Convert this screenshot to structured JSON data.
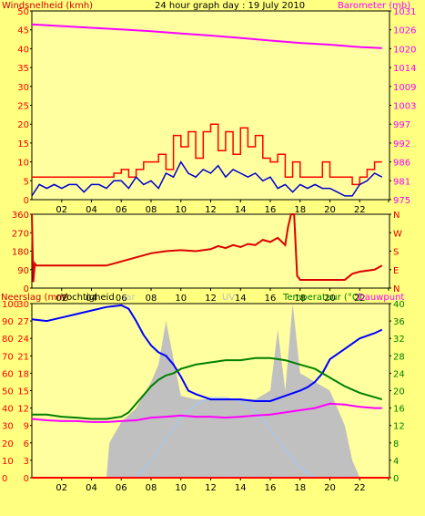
{
  "header": {
    "left_title": "Windsnelheid (kmh)",
    "center_title": "24 hour graph day : 19 July 2010",
    "right_title": "Barometer (mb)"
  },
  "bottom_labels": {
    "rain": "Neerslag (mm)",
    "humidity": "Vochtigheid",
    "solar": "Solar",
    "uv": "UV",
    "temperature": "Temperatuur (°C)",
    "dewpoint": "Dauwpunt"
  },
  "x_ticks": [
    "02",
    "04",
    "06",
    "08",
    "10",
    "12",
    "14",
    "16",
    "18",
    "20",
    "22"
  ],
  "colors": {
    "background": "#ffff80",
    "plot_bg": "#ffffa0",
    "wind_gust": "#ff0000",
    "wind_avg": "#0000cc",
    "barometer": "#ff00ff",
    "direction": "#dd0000",
    "humidity": "#0000ff",
    "temperature": "#008000",
    "dewpoint": "#ff00ff",
    "solar": "#c0c0c0",
    "uv": "#9cc8ff"
  },
  "chart_data": [
    {
      "type": "line",
      "title": "24 hour graph day : 19 July 2010",
      "x_label": "",
      "y_label_left": "Windsnelheid (kmh)",
      "y_label_right": "Barometer (mb)",
      "x_range_hours": [
        0,
        24
      ],
      "y_left_ticks": [
        "50",
        "45",
        "40",
        "35",
        "30",
        "25",
        "20",
        "15",
        "10",
        "5",
        "0"
      ],
      "y_left_range": [
        0,
        50
      ],
      "y_right_ticks": [
        "1031",
        "1026",
        "1020",
        "1014",
        "1009",
        "1003",
        "997",
        "992",
        "986",
        "981",
        "975"
      ],
      "y_right_range": [
        975,
        1031
      ],
      "series": [
        {
          "name": "gust",
          "axis": "left",
          "x": [
            0,
            1,
            2,
            3,
            4,
            5,
            5.5,
            6,
            6.5,
            7,
            7.5,
            8,
            8.5,
            9,
            9.5,
            10,
            10.5,
            11,
            11.5,
            12,
            12.5,
            13,
            13.5,
            14,
            14.5,
            15,
            15.5,
            16,
            16.5,
            17,
            17.5,
            18,
            18.5,
            19,
            19.5,
            20,
            20.5,
            21,
            21.5,
            22,
            22.5,
            23,
            23.5
          ],
          "values": [
            6,
            6,
            6,
            6,
            6,
            6,
            7,
            8,
            6,
            8,
            10,
            10,
            12,
            8,
            17,
            14,
            18,
            11,
            18,
            20,
            13,
            18,
            12,
            19,
            14,
            17,
            11,
            10,
            12,
            6,
            10,
            6,
            6,
            6,
            10,
            6,
            6,
            6,
            4,
            6,
            8,
            10,
            10
          ]
        },
        {
          "name": "average",
          "axis": "left",
          "x": [
            0,
            0.5,
            1,
            1.5,
            2,
            2.5,
            3,
            3.5,
            4,
            4.5,
            5,
            5.5,
            6,
            6.5,
            7,
            7.5,
            8,
            8.5,
            9,
            9.5,
            10,
            10.5,
            11,
            11.5,
            12,
            12.5,
            13,
            13.5,
            14,
            14.5,
            15,
            15.5,
            16,
            16.5,
            17,
            17.5,
            18,
            18.5,
            19,
            19.5,
            20,
            20.5,
            21,
            21.5,
            22,
            22.5,
            23,
            23.5
          ],
          "values": [
            1,
            4,
            3,
            4,
            3,
            4,
            4,
            2,
            4,
            4,
            3,
            5,
            5,
            3,
            6,
            4,
            5,
            3,
            7,
            6,
            10,
            7,
            6,
            8,
            7,
            9,
            6,
            8,
            7,
            6,
            7,
            5,
            6,
            3,
            4,
            2,
            4,
            3,
            4,
            3,
            3,
            2,
            1,
            1,
            4,
            5,
            7,
            6
          ]
        },
        {
          "name": "barometer",
          "axis": "right",
          "x": [
            0,
            2,
            4,
            6,
            8,
            10,
            12,
            14,
            16,
            18,
            20,
            22,
            23.5
          ],
          "values": [
            1027,
            1026.5,
            1026,
            1025.5,
            1025,
            1024.3,
            1023.7,
            1023,
            1022.2,
            1021.5,
            1021,
            1020.3,
            1020
          ]
        }
      ]
    },
    {
      "type": "line",
      "title": "",
      "y_label_left": "",
      "y_ticks": [
        "360",
        "270",
        "180",
        "90",
        "0"
      ],
      "y_range": [
        0,
        360
      ],
      "right_labels": [
        "N",
        "W",
        "S",
        "E",
        "N"
      ],
      "x_range_hours": [
        0,
        24
      ],
      "series": [
        {
          "name": "direction",
          "x": [
            0,
            0.1,
            0.2,
            0.3,
            2,
            4,
            5,
            6,
            7,
            8,
            9,
            10,
            11,
            12,
            12.5,
            13,
            13.5,
            14,
            14.5,
            15,
            15.5,
            16,
            16.5,
            17,
            17.2,
            17.4,
            17.6,
            17.8,
            18,
            19,
            20,
            21,
            21.5,
            22,
            23,
            23.5
          ],
          "values": [
            360,
            30,
            120,
            110,
            110,
            110,
            110,
            130,
            150,
            170,
            180,
            185,
            180,
            190,
            205,
            195,
            210,
            200,
            215,
            210,
            235,
            225,
            245,
            210,
            300,
            360,
            360,
            60,
            40,
            40,
            40,
            40,
            70,
            80,
            90,
            110
          ]
        }
      ]
    },
    {
      "type": "line",
      "title": "",
      "y_label_left": "Neerslag (mm)",
      "y_label_right": "Temperatuur (°C)",
      "x_range_hours": [
        0,
        24
      ],
      "rain_ticks": [
        "30",
        "27",
        "24",
        "21",
        "18",
        "15",
        "12",
        "9",
        "6",
        "3",
        "0"
      ],
      "rain_range": [
        0,
        30
      ],
      "humidity_ticks": [
        "100",
        "90",
        "80",
        "70",
        "60",
        "50",
        "40",
        "30",
        "20",
        "10",
        "0"
      ],
      "humidity_range": [
        0,
        100
      ],
      "temp_ticks": [
        "40",
        "36",
        "32",
        "28",
        "24",
        "20",
        "16",
        "12",
        "8",
        "4",
        "0"
      ],
      "temp_range": [
        0,
        40
      ],
      "series": [
        {
          "name": "Vochtigheid",
          "axis": "humidity",
          "x": [
            0,
            1,
            2,
            3,
            4,
            5,
            6,
            6.5,
            7,
            7.5,
            8,
            8.5,
            9,
            9.5,
            10,
            10.5,
            11,
            12,
            13,
            14,
            15,
            16,
            17,
            18,
            18.5,
            19,
            19.5,
            20,
            21,
            22,
            23,
            23.5
          ],
          "values": [
            91,
            90,
            92,
            94,
            96,
            98,
            99,
            97,
            90,
            82,
            76,
            72,
            70,
            65,
            58,
            50,
            48,
            45,
            45,
            45,
            44,
            44,
            47,
            50,
            52,
            55,
            60,
            68,
            74,
            80,
            83,
            85
          ]
        },
        {
          "name": "Temperatuur",
          "axis": "temp",
          "x": [
            0,
            1,
            2,
            3,
            4,
            5,
            6,
            6.5,
            7,
            7.5,
            8,
            8.5,
            9,
            9.5,
            10,
            11,
            12,
            13,
            14,
            15,
            16,
            17,
            18,
            19,
            20,
            21,
            22,
            23,
            23.5
          ],
          "values": [
            14.5,
            14.5,
            14,
            13.8,
            13.5,
            13.5,
            14,
            15,
            17,
            19,
            21,
            22.5,
            23.5,
            24,
            25,
            26,
            26.5,
            27,
            27,
            27.5,
            27.5,
            27,
            26,
            25,
            23,
            21,
            19.5,
            18.5,
            18
          ]
        },
        {
          "name": "Dauwpunt",
          "axis": "temp",
          "x": [
            0,
            1,
            2,
            3,
            4,
            5,
            6,
            7,
            8,
            9,
            10,
            11,
            12,
            13,
            14,
            15,
            16,
            17,
            18,
            19,
            20,
            21,
            22,
            23,
            23.5
          ],
          "values": [
            13.5,
            13.2,
            13,
            13,
            12.8,
            12.8,
            13,
            13.2,
            13.8,
            14,
            14.3,
            14,
            14,
            13.8,
            14,
            14.3,
            14.5,
            15,
            15.5,
            16,
            17,
            16.8,
            16.3,
            16,
            16
          ]
        },
        {
          "name": "Solar",
          "axis": "humidity",
          "x": [
            0,
            5,
            5.2,
            6,
            7,
            8,
            8.5,
            9,
            10,
            11,
            12,
            13,
            14,
            15,
            16,
            16.5,
            17,
            17.5,
            18,
            19,
            20,
            21,
            21.5,
            22,
            24
          ],
          "values": [
            0,
            0,
            20,
            32,
            40,
            55,
            65,
            90,
            47,
            45,
            45,
            45,
            45,
            45,
            50,
            85,
            50,
            100,
            60,
            55,
            50,
            30,
            10,
            0,
            0
          ]
        },
        {
          "name": "UV",
          "axis": "humidity",
          "x": [
            7,
            8,
            9,
            10,
            11,
            12,
            13,
            14,
            15,
            16,
            17,
            18,
            19
          ],
          "values": [
            0,
            10,
            22,
            34,
            42,
            46,
            46,
            44,
            38,
            28,
            16,
            6,
            0
          ]
        },
        {
          "name": "Neerslag",
          "axis": "rain",
          "x": [
            0,
            24
          ],
          "values": [
            0,
            0
          ]
        }
      ]
    }
  ]
}
